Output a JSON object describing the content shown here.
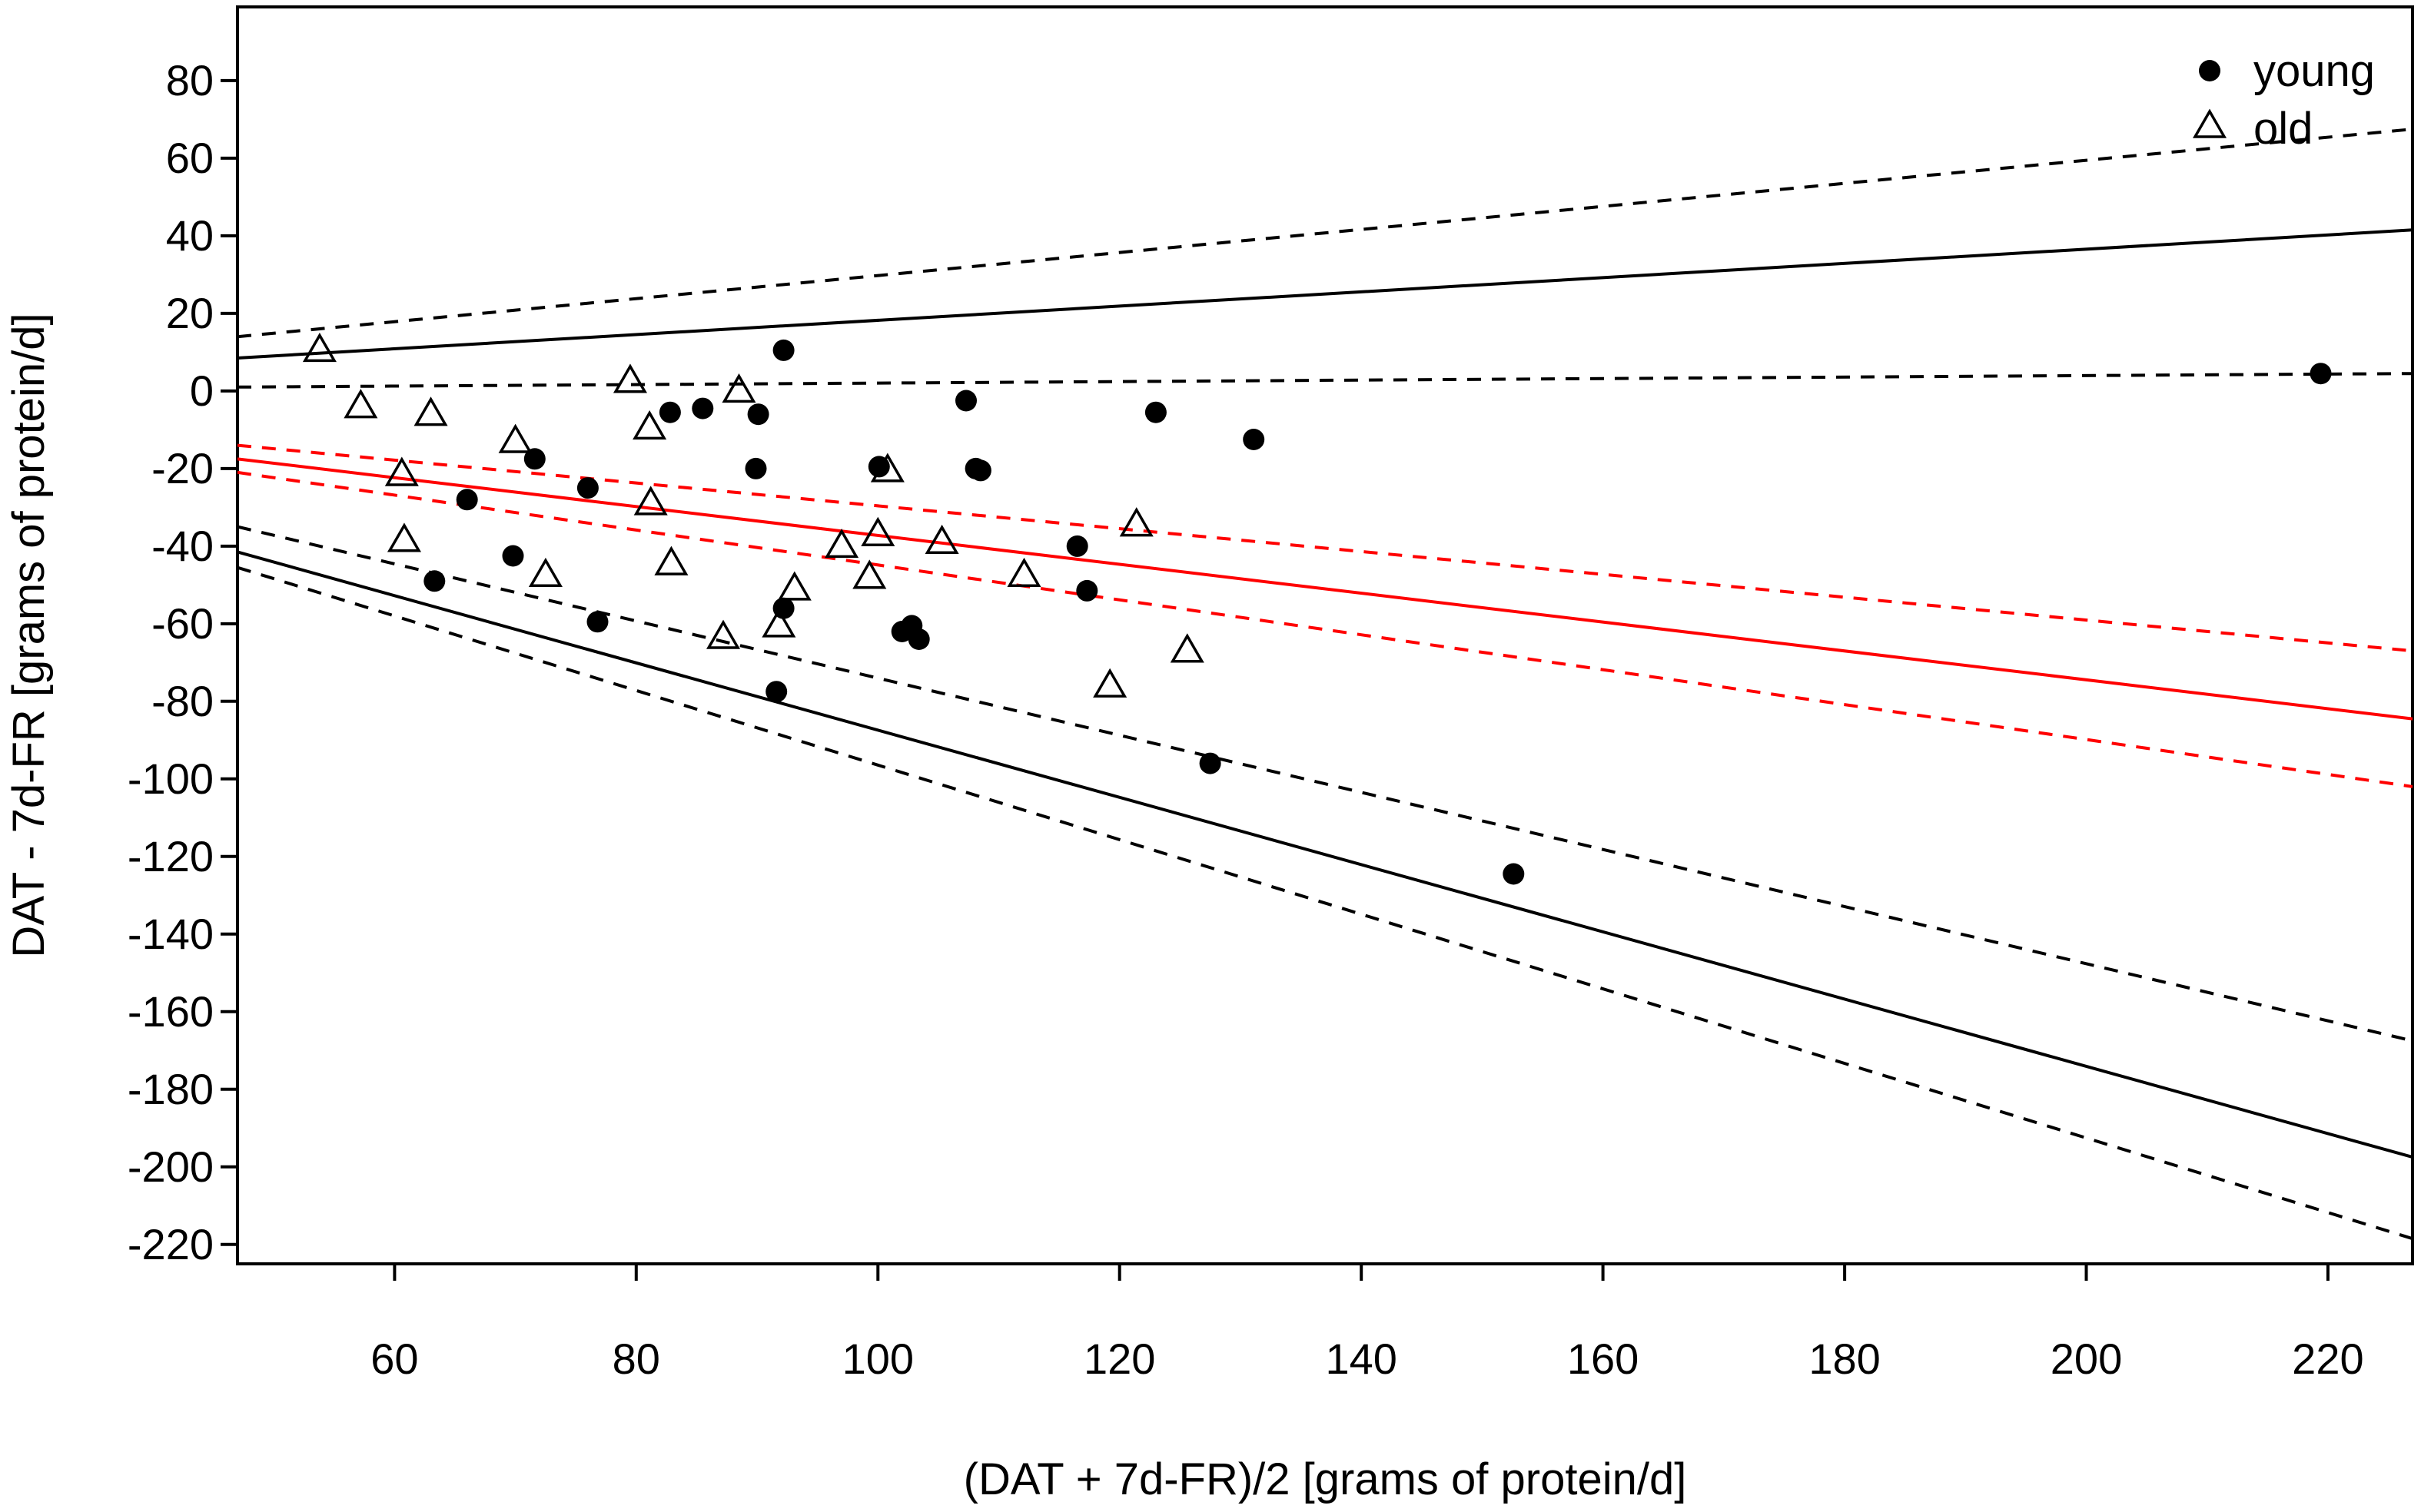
{
  "chart_data": {
    "type": "scatter",
    "title": "",
    "xlabel": "(DAT + 7d-FR)/2 [grams of protein/d]",
    "ylabel": "DAT - 7d-FR [grams of protein/d]",
    "xlim": [
      47,
      227
    ],
    "ylim": [
      -225,
      99
    ],
    "xticks": [
      60,
      80,
      100,
      120,
      140,
      160,
      180,
      200,
      220
    ],
    "yticks": [
      80,
      60,
      40,
      20,
      0,
      -20,
      -40,
      -60,
      -80,
      -100,
      -120,
      -140,
      -160,
      -180,
      -200,
      -220
    ],
    "legend": {
      "position": "top-right",
      "entries": [
        {
          "label": "young",
          "marker": "filled-circle"
        },
        {
          "label": "old",
          "marker": "open-triangle"
        }
      ]
    },
    "series": [
      {
        "name": "young",
        "marker": "filled-circle",
        "color": "#000000",
        "points": [
          [
            63.3,
            -49
          ],
          [
            66,
            -28
          ],
          [
            69.8,
            -42.5
          ],
          [
            71.6,
            -17.5
          ],
          [
            76,
            -25
          ],
          [
            76.8,
            -59.5
          ],
          [
            82.8,
            -5.5
          ],
          [
            85.5,
            -4.5
          ],
          [
            89.9,
            -20
          ],
          [
            90.1,
            -6
          ],
          [
            91.6,
            -77.5
          ],
          [
            92.2,
            10.5
          ],
          [
            92.2,
            -56
          ],
          [
            100.1,
            -19.5
          ],
          [
            102,
            -62
          ],
          [
            102.8,
            -60.5
          ],
          [
            103.4,
            -64
          ],
          [
            107.3,
            -2.5
          ],
          [
            108.1,
            -20
          ],
          [
            108.5,
            -20.5
          ],
          [
            116.5,
            -40
          ],
          [
            117.3,
            -51.5
          ],
          [
            123,
            -5.5
          ],
          [
            127.5,
            -96
          ],
          [
            131.1,
            -12.5
          ],
          [
            152.6,
            -124.5
          ],
          [
            219.4,
            4.5
          ]
        ]
      },
      {
        "name": "old",
        "marker": "open-triangle",
        "color": "#000000",
        "points": [
          [
            53.8,
            10
          ],
          [
            57.2,
            -4.5
          ],
          [
            63,
            -6.5
          ],
          [
            60.6,
            -22
          ],
          [
            60.8,
            -39
          ],
          [
            70,
            -13.5
          ],
          [
            72.5,
            -48
          ],
          [
            79.5,
            2
          ],
          [
            81.1,
            -10
          ],
          [
            81.2,
            -29.5
          ],
          [
            82.9,
            -45
          ],
          [
            87.2,
            -64
          ],
          [
            88.5,
            -0.5
          ],
          [
            91.8,
            -61
          ],
          [
            93.1,
            -51.5
          ],
          [
            97,
            -40.5
          ],
          [
            99.3,
            -48.5
          ],
          [
            100,
            -37.5
          ],
          [
            100.8,
            -21
          ],
          [
            105.3,
            -39.5
          ],
          [
            112.1,
            -48
          ],
          [
            119.2,
            -76.5
          ],
          [
            121.4,
            -35
          ],
          [
            125.6,
            -67.5
          ]
        ]
      }
    ],
    "lines": [
      {
        "name": "upper-limit-of-agreement",
        "color": "#000000",
        "style": "solid",
        "x": [
          47,
          227
        ],
        "y": [
          8.5,
          41.5
        ]
      },
      {
        "name": "upper-limit-ci-upper",
        "color": "#000000",
        "style": "dashed",
        "x": [
          47,
          227
        ],
        "y": [
          14,
          67.5
        ]
      },
      {
        "name": "upper-limit-ci-lower",
        "color": "#000000",
        "style": "dashed",
        "x": [
          47,
          227
        ],
        "y": [
          1,
          4.5
        ]
      },
      {
        "name": "mean-bias",
        "color": "#ff0000",
        "style": "solid",
        "x": [
          47,
          227
        ],
        "y": [
          -17.5,
          -84.5
        ]
      },
      {
        "name": "mean-bias-ci-upper",
        "color": "#ff0000",
        "style": "dashed",
        "x": [
          47,
          227
        ],
        "y": [
          -14,
          -67
        ]
      },
      {
        "name": "mean-bias-ci-lower",
        "color": "#ff0000",
        "style": "dashed",
        "x": [
          47,
          227
        ],
        "y": [
          -21,
          -102
        ]
      },
      {
        "name": "lower-limit-of-agreement",
        "color": "#000000",
        "style": "solid",
        "x": [
          47,
          227
        ],
        "y": [
          -41.5,
          -197.5
        ]
      },
      {
        "name": "lower-limit-ci-upper",
        "color": "#000000",
        "style": "dashed",
        "x": [
          47,
          227
        ],
        "y": [
          -35,
          -167.5
        ]
      },
      {
        "name": "lower-limit-ci-lower",
        "color": "#000000",
        "style": "dashed",
        "x": [
          47,
          227
        ],
        "y": [
          -45.5,
          -218.5
        ]
      }
    ]
  }
}
